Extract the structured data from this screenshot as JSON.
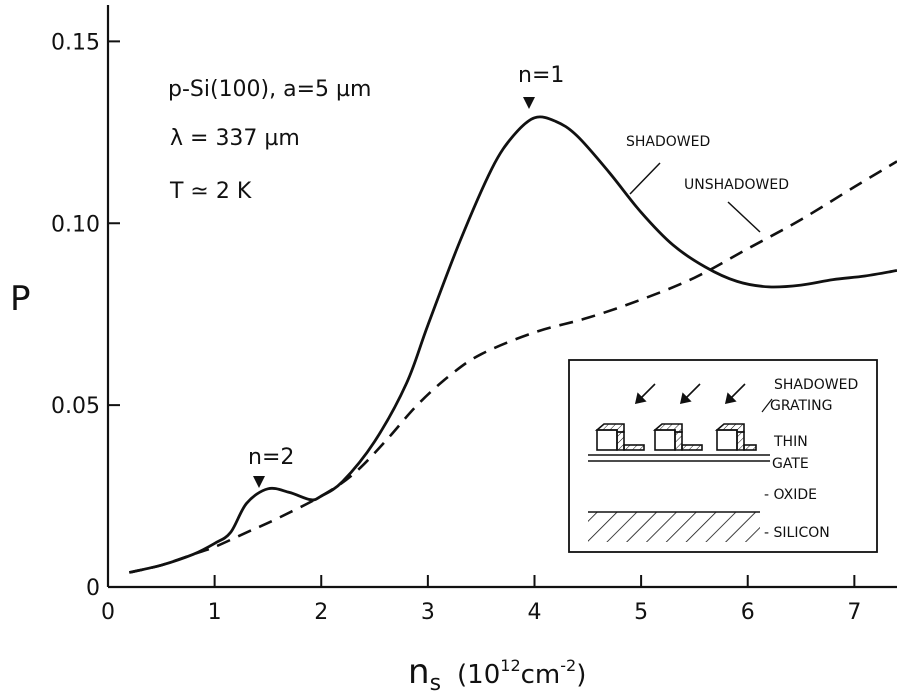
{
  "chart_data": {
    "type": "line",
    "x_ticks": [
      "0",
      "1",
      "2",
      "3",
      "4",
      "5",
      "6",
      "7"
    ],
    "y_ticks": [
      "0",
      "0.05",
      "0.10",
      "0.15"
    ],
    "xlim": [
      0,
      7.4
    ],
    "ylim": [
      0,
      0.16
    ],
    "ylabel": "P",
    "xlabel": {
      "main": "n",
      "sub": "s",
      "unit_pre": "(10",
      "unit_exp1": "12",
      "unit_mid": "cm",
      "unit_exp2": "-2",
      "unit_post": ")"
    },
    "grid": false,
    "series": [
      {
        "name": "SHADOWED",
        "style": "solid",
        "x": [
          0.2,
          0.5,
          0.8,
          1.0,
          1.15,
          1.3,
          1.5,
          1.7,
          1.9,
          2.0,
          2.2,
          2.5,
          2.8,
          3.0,
          3.3,
          3.6,
          3.8,
          4.0,
          4.2,
          4.4,
          4.7,
          5.0,
          5.3,
          5.6,
          5.9,
          6.2,
          6.5,
          6.8,
          7.1,
          7.4
        ],
        "y": [
          0.004,
          0.006,
          0.009,
          0.012,
          0.015,
          0.023,
          0.027,
          0.026,
          0.024,
          0.025,
          0.029,
          0.04,
          0.056,
          0.072,
          0.095,
          0.115,
          0.124,
          0.129,
          0.128,
          0.124,
          0.114,
          0.103,
          0.094,
          0.088,
          0.084,
          0.0825,
          0.083,
          0.0845,
          0.0855,
          0.087
        ]
      },
      {
        "name": "UNSHADOWED",
        "style": "dashed",
        "x": [
          0.2,
          0.5,
          0.8,
          1.0,
          1.3,
          1.6,
          2.0,
          2.3,
          2.6,
          2.9,
          3.2,
          3.5,
          4.0,
          4.5,
          5.0,
          5.5,
          6.0,
          6.5,
          7.0,
          7.4
        ],
        "y": [
          0.004,
          0.006,
          0.009,
          0.011,
          0.015,
          0.019,
          0.025,
          0.031,
          0.04,
          0.05,
          0.058,
          0.064,
          0.07,
          0.074,
          0.079,
          0.085,
          0.093,
          0.101,
          0.11,
          0.117
        ]
      }
    ],
    "annotations": {
      "sample": "p-Si(100), a=5 µm",
      "wavelength": "λ = 337 µm",
      "temperature": "T ≃ 2 K",
      "peak1": "n=1",
      "peak2": "n=2",
      "shadowed_label": "SHADOWED",
      "unshadowed_label": "UNSHADOWED"
    },
    "inset": {
      "shadowed": "SHADOWED",
      "grating": "GRATING",
      "thin": "THIN",
      "gate": "GATE",
      "oxide": "- OXIDE",
      "silicon": "- SILICON"
    }
  }
}
